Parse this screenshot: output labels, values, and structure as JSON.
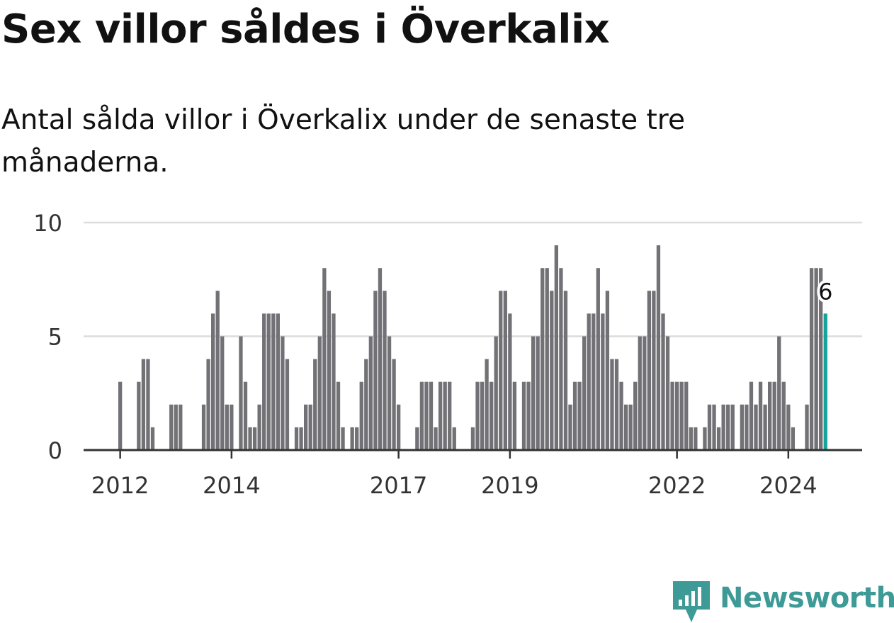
{
  "title": "Sex villor såldes i Överkalix",
  "subtitle": "Antal sålda villor i Överkalix under de senaste tre månaderna.",
  "brand": {
    "name": "Newsworthy",
    "color": "#3d9a97",
    "icon": "bar-chart-speech-bubble-icon"
  },
  "colors": {
    "bar": "#727176",
    "highlight": "#15a39a",
    "grid": "#dcdcdc",
    "axis": "#333333",
    "text": "#333333"
  },
  "chart_data": {
    "type": "bar",
    "title": "Sex villor såldes i Överkalix",
    "subtitle": "Antal sålda villor i Överkalix under de senaste tre månaderna.",
    "xlabel": "",
    "ylabel": "",
    "ylim": [
      0,
      10
    ],
    "yticks": [
      "0",
      "5",
      "10"
    ],
    "grid": true,
    "start_period": "2012-01",
    "period_unit": "month",
    "xticks": [
      {
        "label": "2012",
        "index": 0
      },
      {
        "label": "2014",
        "index": 24
      },
      {
        "label": "2017",
        "index": 60
      },
      {
        "label": "2019",
        "index": 84
      },
      {
        "label": "2022",
        "index": 120
      },
      {
        "label": "2024",
        "index": 144
      }
    ],
    "values": [
      3,
      0,
      0,
      0,
      3,
      4,
      4,
      1,
      0,
      0,
      0,
      2,
      2,
      2,
      0,
      0,
      0,
      0,
      2,
      4,
      6,
      7,
      5,
      2,
      2,
      0,
      5,
      3,
      1,
      1,
      2,
      6,
      6,
      6,
      6,
      5,
      4,
      0,
      1,
      1,
      2,
      2,
      4,
      5,
      8,
      7,
      6,
      3,
      1,
      0,
      1,
      1,
      3,
      4,
      5,
      7,
      8,
      7,
      5,
      4,
      2,
      0,
      0,
      0,
      1,
      3,
      3,
      3,
      1,
      3,
      3,
      3,
      1,
      0,
      0,
      0,
      1,
      3,
      3,
      4,
      3,
      5,
      7,
      7,
      6,
      3,
      0,
      3,
      3,
      5,
      5,
      8,
      8,
      7,
      9,
      8,
      7,
      2,
      3,
      3,
      5,
      6,
      6,
      8,
      6,
      7,
      4,
      4,
      3,
      2,
      2,
      3,
      5,
      5,
      7,
      7,
      9,
      6,
      5,
      3,
      3,
      3,
      3,
      1,
      1,
      0,
      1,
      2,
      2,
      1,
      2,
      2,
      2,
      0,
      2,
      2,
      3,
      2,
      3,
      2,
      3,
      3,
      5,
      3,
      2,
      1,
      0,
      0,
      2,
      8,
      8,
      8,
      6
    ],
    "highlight_index": 152,
    "annotation": {
      "label": "6",
      "index": 152
    }
  }
}
